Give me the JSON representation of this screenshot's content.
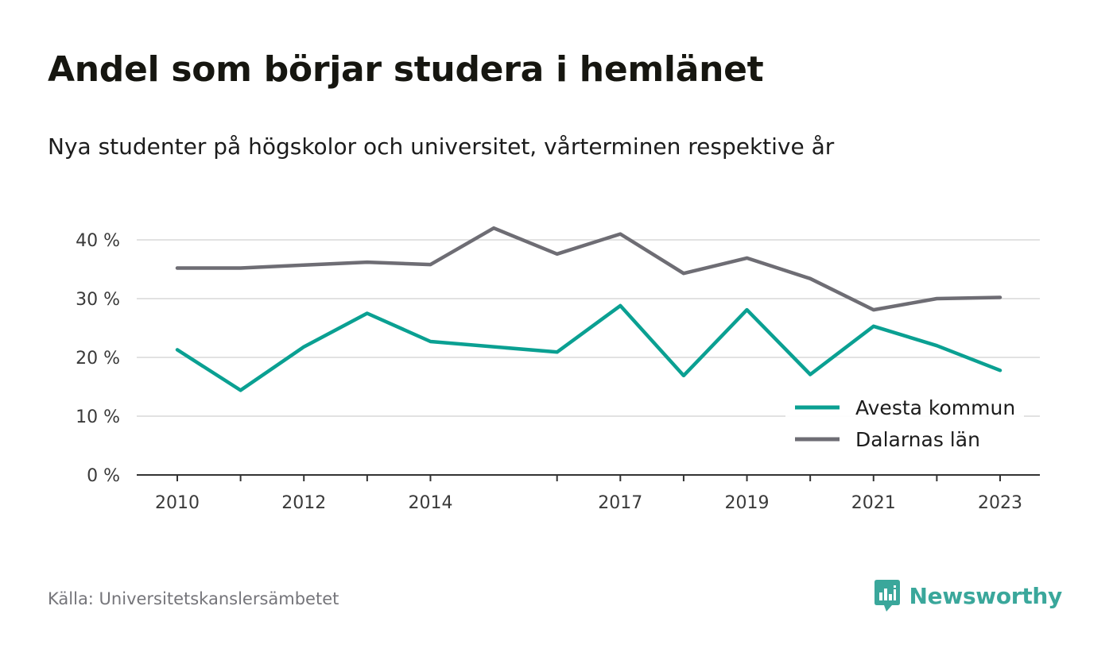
{
  "title": "Andel som börjar studera i hemlänet",
  "subtitle": "Nya studenter på högskolor och universitet, vårterminen respektive år",
  "source": "Källa: Universitetskanslersämbetet",
  "brand": {
    "name": "Newsworthy",
    "icon": "newsworthy-logo-icon",
    "color": "#3aa79b"
  },
  "chart_data": {
    "type": "line",
    "ylim": [
      0,
      40
    ],
    "yticks": [
      {
        "value": 0,
        "label": "0 %"
      },
      {
        "value": 10,
        "label": "10 %"
      },
      {
        "value": 20,
        "label": "20 %"
      },
      {
        "value": 30,
        "label": "30 %"
      },
      {
        "value": 40,
        "label": "40 %"
      }
    ],
    "xlim": [
      2010,
      2023
    ],
    "xticks": [
      {
        "value": 2010,
        "label": "2010"
      },
      {
        "value": 2012,
        "label": "2012"
      },
      {
        "value": 2014,
        "label": "2014"
      },
      {
        "value": 2017,
        "label": "2017"
      },
      {
        "value": 2019,
        "label": "2019"
      },
      {
        "value": 2021,
        "label": "2021"
      },
      {
        "value": 2023,
        "label": "2023"
      }
    ],
    "x": [
      2010,
      2011,
      2012,
      2013,
      2014,
      2016,
      2017,
      2018,
      2019,
      2020,
      2021,
      2022,
      2023
    ],
    "grid": true,
    "legend_position": "bottom-right",
    "series": [
      {
        "name": "Avesta kommun",
        "color": "#0aa092",
        "x": [
          2010,
          2011,
          2012,
          2013,
          2014,
          2016,
          2017,
          2018,
          2019,
          2020,
          2021,
          2022,
          2023
        ],
        "values": [
          21.3,
          14.4,
          21.8,
          27.5,
          22.7,
          20.9,
          28.8,
          16.9,
          28.1,
          17.1,
          25.3,
          22.0,
          17.8
        ]
      },
      {
        "name": "Dalarnas län",
        "color": "#6e6d74",
        "x": [
          2010,
          2011,
          2012,
          2013,
          2014,
          2015,
          2016,
          2017,
          2018,
          2019,
          2020,
          2021,
          2022,
          2023
        ],
        "values": [
          35.2,
          35.2,
          35.7,
          36.2,
          35.8,
          42.0,
          37.6,
          41.0,
          34.3,
          36.9,
          33.4,
          28.1,
          30.0,
          30.2
        ]
      }
    ]
  }
}
